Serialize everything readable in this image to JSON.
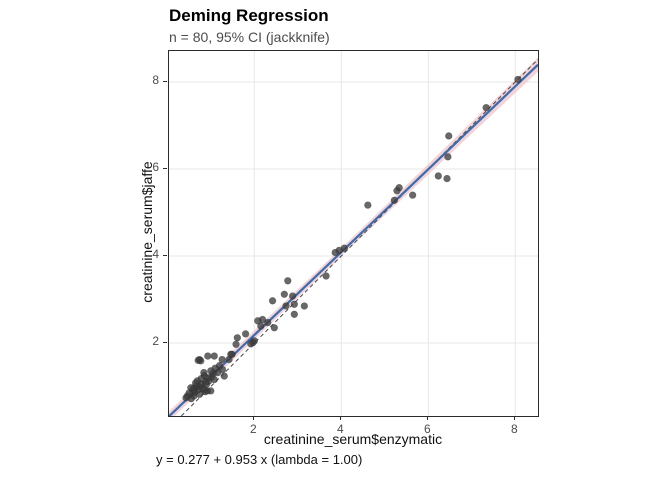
{
  "title": "Deming Regression",
  "subtitle": "n = 80, 95% CI (jackknife)",
  "axes": {
    "x_label": "creatinine_serum$enzymatic",
    "y_label": "creatinine_serum$jaffe"
  },
  "caption": "y = 0.277 + 0.953 x  (lambda = 1.00)",
  "colors": {
    "regression_line": "#3a6cb0",
    "confidence_band": "#f0c4c9",
    "identity_line": "#444444",
    "point": "#3d3d3d",
    "grid": "#e7e7e7",
    "panel_border": "#2b2b2b",
    "tick_text": "#4d4d4d"
  },
  "chart_data": {
    "type": "scatter",
    "title": "Deming Regression",
    "subtitle": "n = 80, 95% CI (jackknife)",
    "xlabel": "creatinine_serum$enzymatic",
    "ylabel": "creatinine_serum$jaffe",
    "caption": "y = 0.277 + 0.953 x  (lambda = 1.00)",
    "n": 80,
    "ci_level": "95%",
    "ci_method": "jackknife",
    "xlim": [
      0.04,
      8.52
    ],
    "ylim": [
      0.32,
      8.67
    ],
    "xticks": [
      2,
      4,
      6,
      8
    ],
    "yticks": [
      2,
      4,
      6,
      8
    ],
    "grid": "major",
    "regression": {
      "intercept": 0.277,
      "slope": 0.953,
      "lambda": 1.0
    },
    "identity_line": {
      "slope": 1,
      "intercept": 0,
      "style": "dashed"
    },
    "points": [
      [
        8.06,
        8.06
      ],
      [
        7.33,
        7.41
      ],
      [
        6.47,
        6.76
      ],
      [
        6.45,
        6.28
      ],
      [
        6.23,
        5.84
      ],
      [
        6.43,
        5.78
      ],
      [
        5.64,
        5.4
      ],
      [
        5.33,
        5.57
      ],
      [
        5.28,
        5.5
      ],
      [
        5.22,
        5.28
      ],
      [
        4.61,
        5.17
      ],
      [
        4.07,
        4.18
      ],
      [
        3.95,
        4.13
      ],
      [
        3.86,
        4.08
      ],
      [
        3.65,
        3.54
      ],
      [
        2.77,
        3.43
      ],
      [
        2.69,
        3.12
      ],
      [
        2.88,
        3.08
      ],
      [
        2.92,
        2.89
      ],
      [
        3.15,
        2.85
      ],
      [
        2.73,
        2.85
      ],
      [
        2.92,
        2.66
      ],
      [
        2.42,
        2.97
      ],
      [
        2.19,
        2.54
      ],
      [
        2.08,
        2.51
      ],
      [
        2.31,
        2.47
      ],
      [
        2.15,
        2.39
      ],
      [
        2.46,
        2.35
      ],
      [
        2.0,
        2.05
      ],
      [
        1.97,
        2.01
      ],
      [
        1.92,
        1.98
      ],
      [
        1.8,
        2.21
      ],
      [
        1.61,
        2.12
      ],
      [
        1.58,
        1.97
      ],
      [
        1.49,
        1.74
      ],
      [
        1.46,
        1.74
      ],
      [
        1.26,
        1.62
      ],
      [
        1.08,
        1.7
      ],
      [
        0.93,
        1.7
      ],
      [
        0.74,
        1.62
      ],
      [
        0.77,
        1.59
      ],
      [
        0.71,
        1.6
      ],
      [
        1.42,
        1.62
      ],
      [
        1.27,
        1.39
      ],
      [
        1.31,
        1.24
      ],
      [
        1.2,
        1.48
      ],
      [
        1.16,
        1.32
      ],
      [
        1.1,
        1.42
      ],
      [
        1.08,
        1.16
      ],
      [
        1.05,
        1.3
      ],
      [
        1.02,
        1.22
      ],
      [
        1.0,
        1.36
      ],
      [
        1.0,
        0.9
      ],
      [
        0.95,
        1.12
      ],
      [
        0.93,
        1.2
      ],
      [
        0.92,
        0.9
      ],
      [
        0.9,
        1.05
      ],
      [
        0.88,
        1.1
      ],
      [
        0.87,
        0.88
      ],
      [
        0.85,
        1.25
      ],
      [
        0.85,
        0.93
      ],
      [
        0.84,
        1.32
      ],
      [
        0.8,
        0.95
      ],
      [
        0.78,
        1.18
      ],
      [
        0.77,
        1.05
      ],
      [
        0.74,
        0.82
      ],
      [
        0.72,
        1.0
      ],
      [
        0.7,
        0.92
      ],
      [
        0.69,
        1.13
      ],
      [
        0.66,
        1.01
      ],
      [
        0.65,
        1.08
      ],
      [
        0.62,
        0.86
      ],
      [
        0.61,
        0.78
      ],
      [
        0.6,
        0.95
      ],
      [
        0.58,
        0.9
      ],
      [
        0.55,
        0.72
      ],
      [
        0.54,
        0.97
      ],
      [
        0.5,
        0.85
      ],
      [
        0.46,
        0.78
      ],
      [
        0.43,
        0.74
      ]
    ]
  }
}
